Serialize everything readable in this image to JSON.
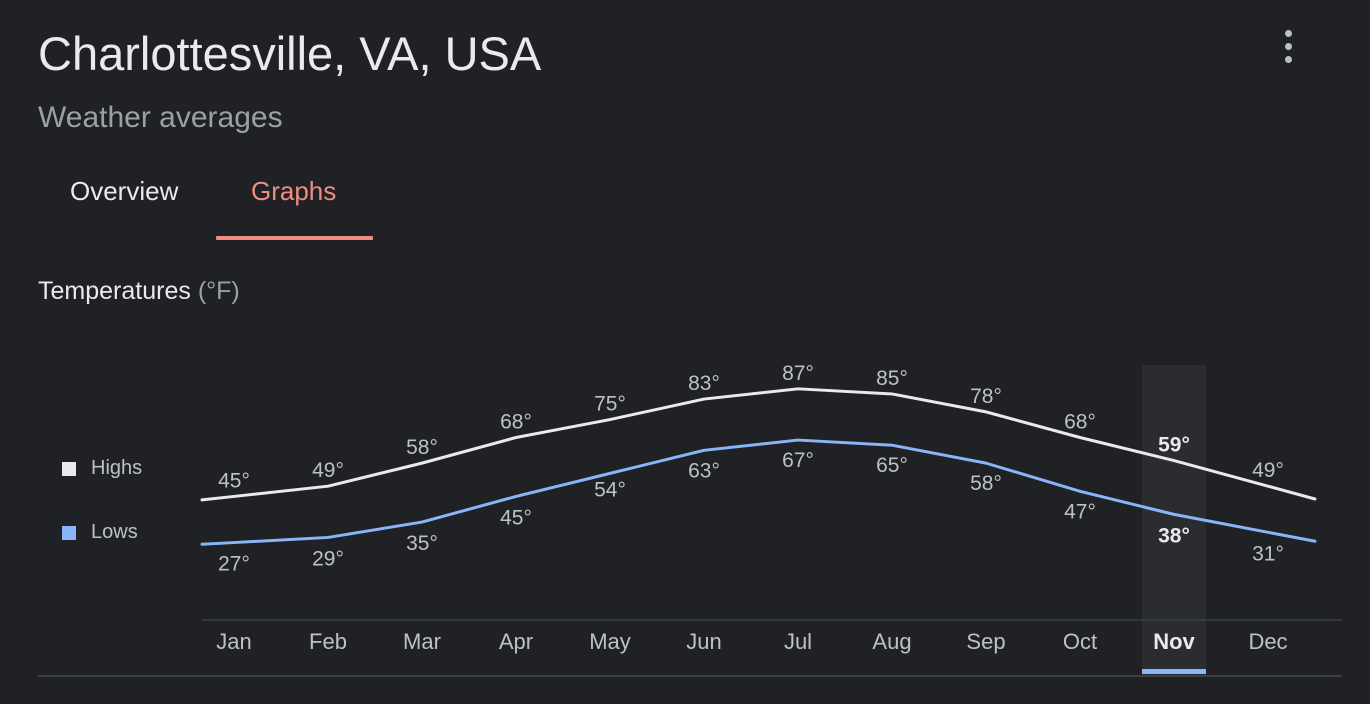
{
  "header": {
    "title": "Charlottesville, VA, USA",
    "subtitle": "Weather averages"
  },
  "tabs": [
    {
      "label": "Overview",
      "selected": false
    },
    {
      "label": "Graphs",
      "selected": true
    }
  ],
  "section": {
    "title": "Temperatures",
    "unit": "(°F)"
  },
  "legend": {
    "highs_label": "Highs",
    "lows_label": "Lows"
  },
  "colors": {
    "background": "#202124",
    "highs": "#e8eaed",
    "lows": "#8ab4f8",
    "accent": "#f28b82"
  },
  "icons": {
    "more": "more-vert-icon"
  },
  "chart_data": {
    "type": "line",
    "title": "Temperatures (°F)",
    "categories": [
      "Jan",
      "Feb",
      "Mar",
      "Apr",
      "May",
      "Jun",
      "Jul",
      "Aug",
      "Sep",
      "Oct",
      "Nov",
      "Dec"
    ],
    "series": [
      {
        "name": "Highs",
        "values": [
          45,
          49,
          58,
          68,
          75,
          83,
          87,
          85,
          78,
          68,
          59,
          49
        ],
        "labels": [
          "45°",
          "49°",
          "58°",
          "68°",
          "75°",
          "83°",
          "87°",
          "85°",
          "78°",
          "68°",
          "59°",
          "49°"
        ],
        "color": "#e8eaed"
      },
      {
        "name": "Lows",
        "values": [
          27,
          29,
          35,
          45,
          54,
          63,
          67,
          65,
          58,
          47,
          38,
          31
        ],
        "labels": [
          "27°",
          "29°",
          "35°",
          "45°",
          "54°",
          "63°",
          "67°",
          "65°",
          "58°",
          "47°",
          "38°",
          "31°"
        ],
        "color": "#8ab4f8"
      }
    ],
    "selected_index": 10,
    "legend_position": "left"
  }
}
